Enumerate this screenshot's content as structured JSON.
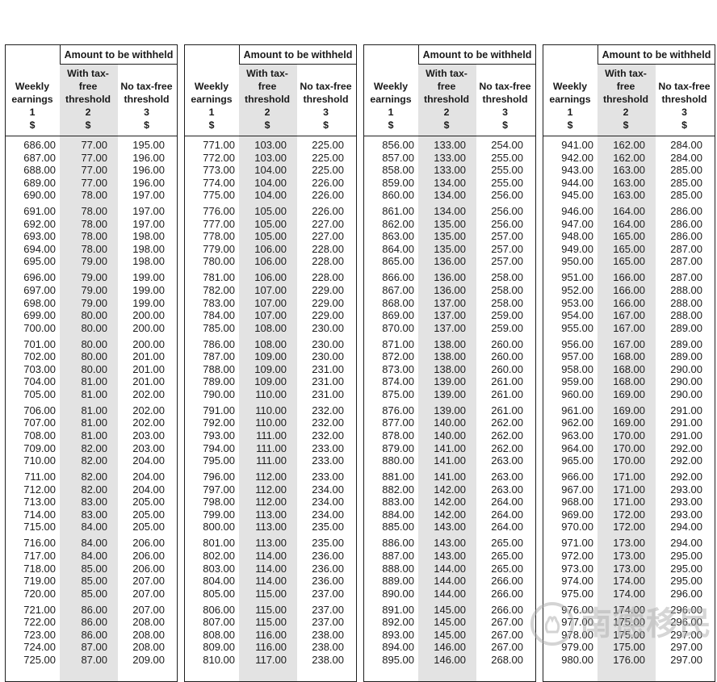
{
  "header": {
    "amount_title": "Amount to be withheld",
    "columns": [
      {
        "name": "Weekly earnings",
        "num": "1",
        "unit": "$"
      },
      {
        "name": "With tax-free threshold",
        "num": "2",
        "unit": "$"
      },
      {
        "name": "No tax-free threshold",
        "num": "3",
        "unit": "$"
      }
    ]
  },
  "colors": {
    "shade": "#e3e3e3",
    "border": "#1f1f1f",
    "text": "#1c1c1c",
    "watermark": "#aeaeae"
  },
  "watermark": {
    "text": "南德移民",
    "logo": "rabbit-circle-logo"
  },
  "tables": [
    {
      "rows": [
        [
          "686.00",
          "77.00",
          "195.00"
        ],
        [
          "687.00",
          "77.00",
          "196.00"
        ],
        [
          "688.00",
          "77.00",
          "196.00"
        ],
        [
          "689.00",
          "77.00",
          "196.00"
        ],
        [
          "690.00",
          "78.00",
          "197.00"
        ],
        [
          "691.00",
          "78.00",
          "197.00"
        ],
        [
          "692.00",
          "78.00",
          "197.00"
        ],
        [
          "693.00",
          "78.00",
          "198.00"
        ],
        [
          "694.00",
          "78.00",
          "198.00"
        ],
        [
          "695.00",
          "79.00",
          "198.00"
        ],
        [
          "696.00",
          "79.00",
          "199.00"
        ],
        [
          "697.00",
          "79.00",
          "199.00"
        ],
        [
          "698.00",
          "79.00",
          "199.00"
        ],
        [
          "699.00",
          "80.00",
          "200.00"
        ],
        [
          "700.00",
          "80.00",
          "200.00"
        ],
        [
          "701.00",
          "80.00",
          "200.00"
        ],
        [
          "702.00",
          "80.00",
          "201.00"
        ],
        [
          "703.00",
          "80.00",
          "201.00"
        ],
        [
          "704.00",
          "81.00",
          "201.00"
        ],
        [
          "705.00",
          "81.00",
          "202.00"
        ],
        [
          "706.00",
          "81.00",
          "202.00"
        ],
        [
          "707.00",
          "81.00",
          "202.00"
        ],
        [
          "708.00",
          "81.00",
          "203.00"
        ],
        [
          "709.00",
          "82.00",
          "203.00"
        ],
        [
          "710.00",
          "82.00",
          "204.00"
        ],
        [
          "711.00",
          "82.00",
          "204.00"
        ],
        [
          "712.00",
          "82.00",
          "204.00"
        ],
        [
          "713.00",
          "83.00",
          "205.00"
        ],
        [
          "714.00",
          "83.00",
          "205.00"
        ],
        [
          "715.00",
          "84.00",
          "205.00"
        ],
        [
          "716.00",
          "84.00",
          "206.00"
        ],
        [
          "717.00",
          "84.00",
          "206.00"
        ],
        [
          "718.00",
          "85.00",
          "206.00"
        ],
        [
          "719.00",
          "85.00",
          "207.00"
        ],
        [
          "720.00",
          "85.00",
          "207.00"
        ],
        [
          "721.00",
          "86.00",
          "207.00"
        ],
        [
          "722.00",
          "86.00",
          "208.00"
        ],
        [
          "723.00",
          "86.00",
          "208.00"
        ],
        [
          "724.00",
          "87.00",
          "208.00"
        ],
        [
          "725.00",
          "87.00",
          "209.00"
        ]
      ]
    },
    {
      "rows": [
        [
          "771.00",
          "103.00",
          "225.00"
        ],
        [
          "772.00",
          "103.00",
          "225.00"
        ],
        [
          "773.00",
          "104.00",
          "225.00"
        ],
        [
          "774.00",
          "104.00",
          "226.00"
        ],
        [
          "775.00",
          "104.00",
          "226.00"
        ],
        [
          "776.00",
          "105.00",
          "226.00"
        ],
        [
          "777.00",
          "105.00",
          "227.00"
        ],
        [
          "778.00",
          "105.00",
          "227.00"
        ],
        [
          "779.00",
          "106.00",
          "228.00"
        ],
        [
          "780.00",
          "106.00",
          "228.00"
        ],
        [
          "781.00",
          "106.00",
          "228.00"
        ],
        [
          "782.00",
          "107.00",
          "229.00"
        ],
        [
          "783.00",
          "107.00",
          "229.00"
        ],
        [
          "784.00",
          "107.00",
          "229.00"
        ],
        [
          "785.00",
          "108.00",
          "230.00"
        ],
        [
          "786.00",
          "108.00",
          "230.00"
        ],
        [
          "787.00",
          "109.00",
          "230.00"
        ],
        [
          "788.00",
          "109.00",
          "231.00"
        ],
        [
          "789.00",
          "109.00",
          "231.00"
        ],
        [
          "790.00",
          "110.00",
          "231.00"
        ],
        [
          "791.00",
          "110.00",
          "232.00"
        ],
        [
          "792.00",
          "110.00",
          "232.00"
        ],
        [
          "793.00",
          "111.00",
          "232.00"
        ],
        [
          "794.00",
          "111.00",
          "233.00"
        ],
        [
          "795.00",
          "111.00",
          "233.00"
        ],
        [
          "796.00",
          "112.00",
          "233.00"
        ],
        [
          "797.00",
          "112.00",
          "234.00"
        ],
        [
          "798.00",
          "112.00",
          "234.00"
        ],
        [
          "799.00",
          "113.00",
          "234.00"
        ],
        [
          "800.00",
          "113.00",
          "235.00"
        ],
        [
          "801.00",
          "113.00",
          "235.00"
        ],
        [
          "802.00",
          "114.00",
          "236.00"
        ],
        [
          "803.00",
          "114.00",
          "236.00"
        ],
        [
          "804.00",
          "114.00",
          "236.00"
        ],
        [
          "805.00",
          "115.00",
          "237.00"
        ],
        [
          "806.00",
          "115.00",
          "237.00"
        ],
        [
          "807.00",
          "115.00",
          "237.00"
        ],
        [
          "808.00",
          "116.00",
          "238.00"
        ],
        [
          "809.00",
          "116.00",
          "238.00"
        ],
        [
          "810.00",
          "117.00",
          "238.00"
        ]
      ]
    },
    {
      "rows": [
        [
          "856.00",
          "133.00",
          "254.00"
        ],
        [
          "857.00",
          "133.00",
          "255.00"
        ],
        [
          "858.00",
          "133.00",
          "255.00"
        ],
        [
          "859.00",
          "134.00",
          "255.00"
        ],
        [
          "860.00",
          "134.00",
          "256.00"
        ],
        [
          "861.00",
          "134.00",
          "256.00"
        ],
        [
          "862.00",
          "135.00",
          "256.00"
        ],
        [
          "863.00",
          "135.00",
          "257.00"
        ],
        [
          "864.00",
          "135.00",
          "257.00"
        ],
        [
          "865.00",
          "136.00",
          "257.00"
        ],
        [
          "866.00",
          "136.00",
          "258.00"
        ],
        [
          "867.00",
          "136.00",
          "258.00"
        ],
        [
          "868.00",
          "137.00",
          "258.00"
        ],
        [
          "869.00",
          "137.00",
          "259.00"
        ],
        [
          "870.00",
          "137.00",
          "259.00"
        ],
        [
          "871.00",
          "138.00",
          "260.00"
        ],
        [
          "872.00",
          "138.00",
          "260.00"
        ],
        [
          "873.00",
          "138.00",
          "260.00"
        ],
        [
          "874.00",
          "139.00",
          "261.00"
        ],
        [
          "875.00",
          "139.00",
          "261.00"
        ],
        [
          "876.00",
          "139.00",
          "261.00"
        ],
        [
          "877.00",
          "140.00",
          "262.00"
        ],
        [
          "878.00",
          "140.00",
          "262.00"
        ],
        [
          "879.00",
          "141.00",
          "262.00"
        ],
        [
          "880.00",
          "141.00",
          "263.00"
        ],
        [
          "881.00",
          "141.00",
          "263.00"
        ],
        [
          "882.00",
          "142.00",
          "263.00"
        ],
        [
          "883.00",
          "142.00",
          "264.00"
        ],
        [
          "884.00",
          "142.00",
          "264.00"
        ],
        [
          "885.00",
          "143.00",
          "264.00"
        ],
        [
          "886.00",
          "143.00",
          "265.00"
        ],
        [
          "887.00",
          "143.00",
          "265.00"
        ],
        [
          "888.00",
          "144.00",
          "265.00"
        ],
        [
          "889.00",
          "144.00",
          "266.00"
        ],
        [
          "890.00",
          "144.00",
          "266.00"
        ],
        [
          "891.00",
          "145.00",
          "266.00"
        ],
        [
          "892.00",
          "145.00",
          "267.00"
        ],
        [
          "893.00",
          "145.00",
          "267.00"
        ],
        [
          "894.00",
          "146.00",
          "267.00"
        ],
        [
          "895.00",
          "146.00",
          "268.00"
        ]
      ]
    },
    {
      "rows": [
        [
          "941.00",
          "162.00",
          "284.00"
        ],
        [
          "942.00",
          "162.00",
          "284.00"
        ],
        [
          "943.00",
          "163.00",
          "285.00"
        ],
        [
          "944.00",
          "163.00",
          "285.00"
        ],
        [
          "945.00",
          "163.00",
          "285.00"
        ],
        [
          "946.00",
          "164.00",
          "286.00"
        ],
        [
          "947.00",
          "164.00",
          "286.00"
        ],
        [
          "948.00",
          "165.00",
          "286.00"
        ],
        [
          "949.00",
          "165.00",
          "287.00"
        ],
        [
          "950.00",
          "165.00",
          "287.00"
        ],
        [
          "951.00",
          "166.00",
          "287.00"
        ],
        [
          "952.00",
          "166.00",
          "288.00"
        ],
        [
          "953.00",
          "166.00",
          "288.00"
        ],
        [
          "954.00",
          "167.00",
          "288.00"
        ],
        [
          "955.00",
          "167.00",
          "289.00"
        ],
        [
          "956.00",
          "167.00",
          "289.00"
        ],
        [
          "957.00",
          "168.00",
          "289.00"
        ],
        [
          "958.00",
          "168.00",
          "290.00"
        ],
        [
          "959.00",
          "168.00",
          "290.00"
        ],
        [
          "960.00",
          "169.00",
          "290.00"
        ],
        [
          "961.00",
          "169.00",
          "291.00"
        ],
        [
          "962.00",
          "169.00",
          "291.00"
        ],
        [
          "963.00",
          "170.00",
          "291.00"
        ],
        [
          "964.00",
          "170.00",
          "292.00"
        ],
        [
          "965.00",
          "170.00",
          "292.00"
        ],
        [
          "966.00",
          "171.00",
          "292.00"
        ],
        [
          "967.00",
          "171.00",
          "293.00"
        ],
        [
          "968.00",
          "171.00",
          "293.00"
        ],
        [
          "969.00",
          "172.00",
          "293.00"
        ],
        [
          "970.00",
          "172.00",
          "294.00"
        ],
        [
          "971.00",
          "173.00",
          "294.00"
        ],
        [
          "972.00",
          "173.00",
          "295.00"
        ],
        [
          "973.00",
          "173.00",
          "295.00"
        ],
        [
          "974.00",
          "174.00",
          "295.00"
        ],
        [
          "975.00",
          "174.00",
          "296.00"
        ],
        [
          "976.00",
          "174.00",
          "296.00"
        ],
        [
          "977.00",
          "175.00",
          "296.00"
        ],
        [
          "978.00",
          "175.00",
          "297.00"
        ],
        [
          "979.00",
          "175.00",
          "297.00"
        ],
        [
          "980.00",
          "176.00",
          "297.00"
        ]
      ]
    }
  ]
}
